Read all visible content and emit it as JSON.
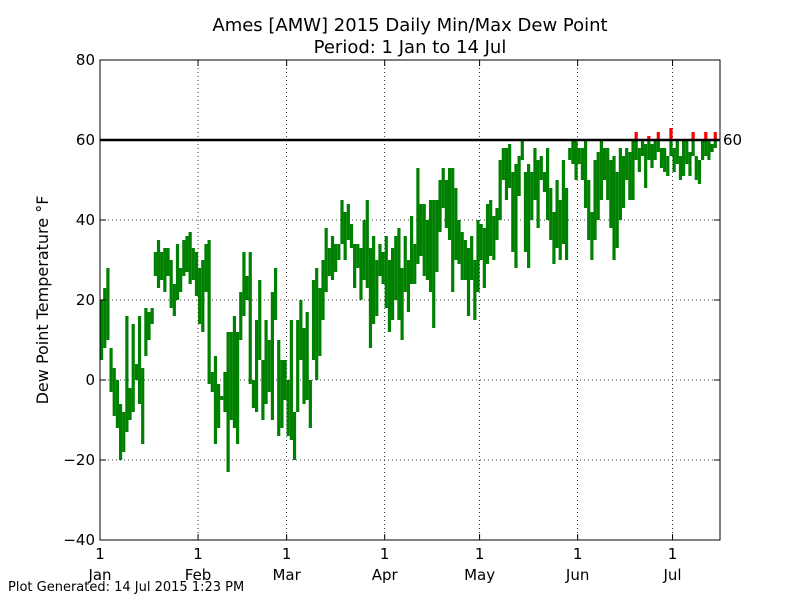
{
  "chart_data": {
    "type": "bar",
    "title": "Ames [AMW] 2015 Daily Min/Max Dew Point",
    "subtitle": "Period: 1 Jan to 14 Jul",
    "xlabel": "",
    "ylabel": "Dew Point Temperature °F",
    "ylim": [
      -40,
      80
    ],
    "xlim_days": [
      0,
      196
    ],
    "yticks": [
      -40,
      -20,
      0,
      20,
      40,
      60,
      80
    ],
    "ytick_labels": [
      "−40",
      "−20",
      "0",
      "20",
      "40",
      "60",
      "80"
    ],
    "xticks": [
      {
        "day": 0,
        "num": "1",
        "month": "Jan"
      },
      {
        "day": 31,
        "num": "1",
        "month": "Feb"
      },
      {
        "day": 59,
        "num": "1",
        "month": "Mar"
      },
      {
        "day": 90,
        "num": "1",
        "month": "Apr"
      },
      {
        "day": 120,
        "num": "1",
        "month": "May"
      },
      {
        "day": 151,
        "num": "1",
        "month": "Jun"
      },
      {
        "day": 181,
        "num": "1",
        "month": "Jul"
      }
    ],
    "grid": true,
    "threshold": {
      "value": 60,
      "label": "60",
      "color": "#000000"
    },
    "colors": {
      "below": "#008000",
      "above": "#ff0000"
    },
    "series": [
      {
        "values": [
          [
            5,
            20
          ],
          [
            8,
            23
          ],
          [
            10,
            28
          ],
          [
            -3,
            8
          ],
          [
            -9,
            3
          ],
          [
            -12,
            0
          ],
          [
            -20,
            -6
          ],
          [
            -18,
            -8
          ],
          [
            -13,
            16
          ],
          [
            -10,
            -2
          ],
          [
            -8,
            14
          ],
          [
            0,
            4
          ],
          [
            -6,
            16
          ],
          [
            -16,
            3
          ],
          [
            6,
            18
          ],
          [
            10,
            17
          ],
          [
            14,
            18
          ],
          [
            26,
            32
          ],
          [
            23,
            35
          ],
          [
            25,
            32
          ],
          [
            22,
            33
          ],
          [
            26,
            33
          ],
          [
            18,
            30
          ],
          [
            16,
            24
          ],
          [
            20,
            34
          ],
          [
            22,
            28
          ],
          [
            26,
            35
          ],
          [
            27,
            36
          ],
          [
            24,
            37
          ],
          [
            25,
            33
          ],
          [
            21,
            32
          ],
          [
            14,
            28
          ],
          [
            12,
            30
          ],
          [
            22,
            34
          ],
          [
            -1,
            35
          ],
          [
            -3,
            2
          ],
          [
            -16,
            6
          ],
          [
            -12,
            -1
          ],
          [
            -4,
            -5
          ],
          [
            -8,
            2
          ],
          [
            -23,
            12
          ],
          [
            -10,
            12
          ],
          [
            -12,
            16
          ],
          [
            -16,
            12
          ],
          [
            10,
            22
          ],
          [
            16,
            32
          ],
          [
            20,
            26
          ],
          [
            -1,
            32
          ],
          [
            -7,
            0
          ],
          [
            -8,
            15
          ],
          [
            5,
            25
          ],
          [
            -10,
            5
          ],
          [
            -6,
            15
          ],
          [
            -3,
            10
          ],
          [
            -10,
            22
          ],
          [
            15,
            28
          ],
          [
            -14,
            10
          ],
          [
            -12,
            5
          ],
          [
            -5,
            5
          ],
          [
            0,
            -14
          ],
          [
            -15,
            15
          ],
          [
            -20,
            -8
          ],
          [
            -8,
            15
          ],
          [
            5,
            20
          ],
          [
            -6,
            13
          ],
          [
            -5,
            17
          ],
          [
            -12,
            0
          ],
          [
            5,
            25
          ],
          [
            0,
            28
          ],
          [
            6,
            23
          ],
          [
            15,
            30
          ],
          [
            22,
            38
          ],
          [
            26,
            33
          ],
          [
            25,
            36
          ],
          [
            27,
            34
          ],
          [
            30,
            34
          ],
          [
            34,
            45
          ],
          [
            30,
            42
          ],
          [
            35,
            44
          ],
          [
            33,
            39
          ],
          [
            23,
            34
          ],
          [
            28,
            34
          ],
          [
            20,
            33
          ],
          [
            25,
            40
          ],
          [
            23,
            45
          ],
          [
            8,
            33
          ],
          [
            14,
            36
          ],
          [
            16,
            30
          ],
          [
            26,
            34
          ],
          [
            24,
            32
          ],
          [
            18,
            36
          ],
          [
            12,
            30
          ],
          [
            15,
            33
          ],
          [
            20,
            36
          ],
          [
            15,
            38
          ],
          [
            10,
            28
          ],
          [
            22,
            36
          ],
          [
            17,
            30
          ],
          [
            24,
            41
          ],
          [
            24,
            34
          ],
          [
            29,
            53
          ],
          [
            31,
            44
          ],
          [
            26,
            44
          ],
          [
            25,
            40
          ],
          [
            22,
            45
          ],
          [
            13,
            45
          ],
          [
            27,
            45
          ],
          [
            37,
            50
          ],
          [
            43,
            53
          ],
          [
            38,
            50
          ],
          [
            35,
            53
          ],
          [
            22,
            53
          ],
          [
            30,
            48
          ],
          [
            29,
            40
          ],
          [
            25,
            37
          ],
          [
            25,
            35
          ],
          [
            16,
            33
          ],
          [
            25,
            36
          ],
          [
            15,
            30
          ],
          [
            22,
            40
          ],
          [
            30,
            39
          ],
          [
            23,
            38
          ],
          [
            29,
            44
          ],
          [
            31,
            45
          ],
          [
            30,
            41
          ],
          [
            35,
            43
          ],
          [
            40,
            55
          ],
          [
            50,
            58
          ],
          [
            45,
            58
          ],
          [
            48,
            59
          ],
          [
            32,
            52
          ],
          [
            28,
            54
          ],
          [
            46,
            56
          ],
          [
            55,
            60
          ],
          [
            32,
            52
          ],
          [
            28,
            54
          ],
          [
            40,
            52
          ],
          [
            45,
            58
          ],
          [
            38,
            55
          ],
          [
            50,
            56
          ],
          [
            47,
            52
          ],
          [
            40,
            58
          ],
          [
            35,
            48
          ],
          [
            29,
            42
          ],
          [
            33,
            50
          ],
          [
            30,
            45
          ],
          [
            34,
            55
          ],
          [
            30,
            48
          ],
          [
            55,
            58
          ],
          [
            54,
            60
          ],
          [
            50,
            60
          ],
          [
            54,
            58
          ],
          [
            50,
            58
          ],
          [
            43,
            60
          ],
          [
            35,
            50
          ],
          [
            30,
            42
          ],
          [
            35,
            55
          ],
          [
            40,
            57
          ],
          [
            45,
            60
          ],
          [
            50,
            58
          ],
          [
            45,
            58
          ],
          [
            38,
            55
          ],
          [
            30,
            56
          ],
          [
            33,
            52
          ],
          [
            40,
            58
          ],
          [
            43,
            56
          ],
          [
            50,
            58
          ],
          [
            45,
            57
          ],
          [
            45,
            60
          ],
          [
            55,
            62
          ],
          [
            52,
            58
          ],
          [
            56,
            60
          ],
          [
            48,
            59
          ],
          [
            55,
            61
          ],
          [
            53,
            59
          ],
          [
            55,
            60
          ],
          [
            57,
            62
          ],
          [
            53,
            58
          ],
          [
            52,
            58
          ],
          [
            51,
            56
          ],
          [
            56,
            63
          ],
          [
            52,
            58
          ],
          [
            54,
            60
          ],
          [
            50,
            56
          ],
          [
            51,
            60
          ],
          [
            54,
            60
          ],
          [
            51,
            57
          ],
          [
            56,
            62
          ],
          [
            50,
            56
          ],
          [
            49,
            55
          ],
          [
            55,
            60
          ],
          [
            56,
            62
          ],
          [
            55,
            60
          ],
          [
            57,
            59
          ],
          [
            58,
            62
          ]
        ]
      }
    ]
  },
  "footer": {
    "generated": "Plot Generated: 14 Jul 2015 1:23 PM"
  }
}
